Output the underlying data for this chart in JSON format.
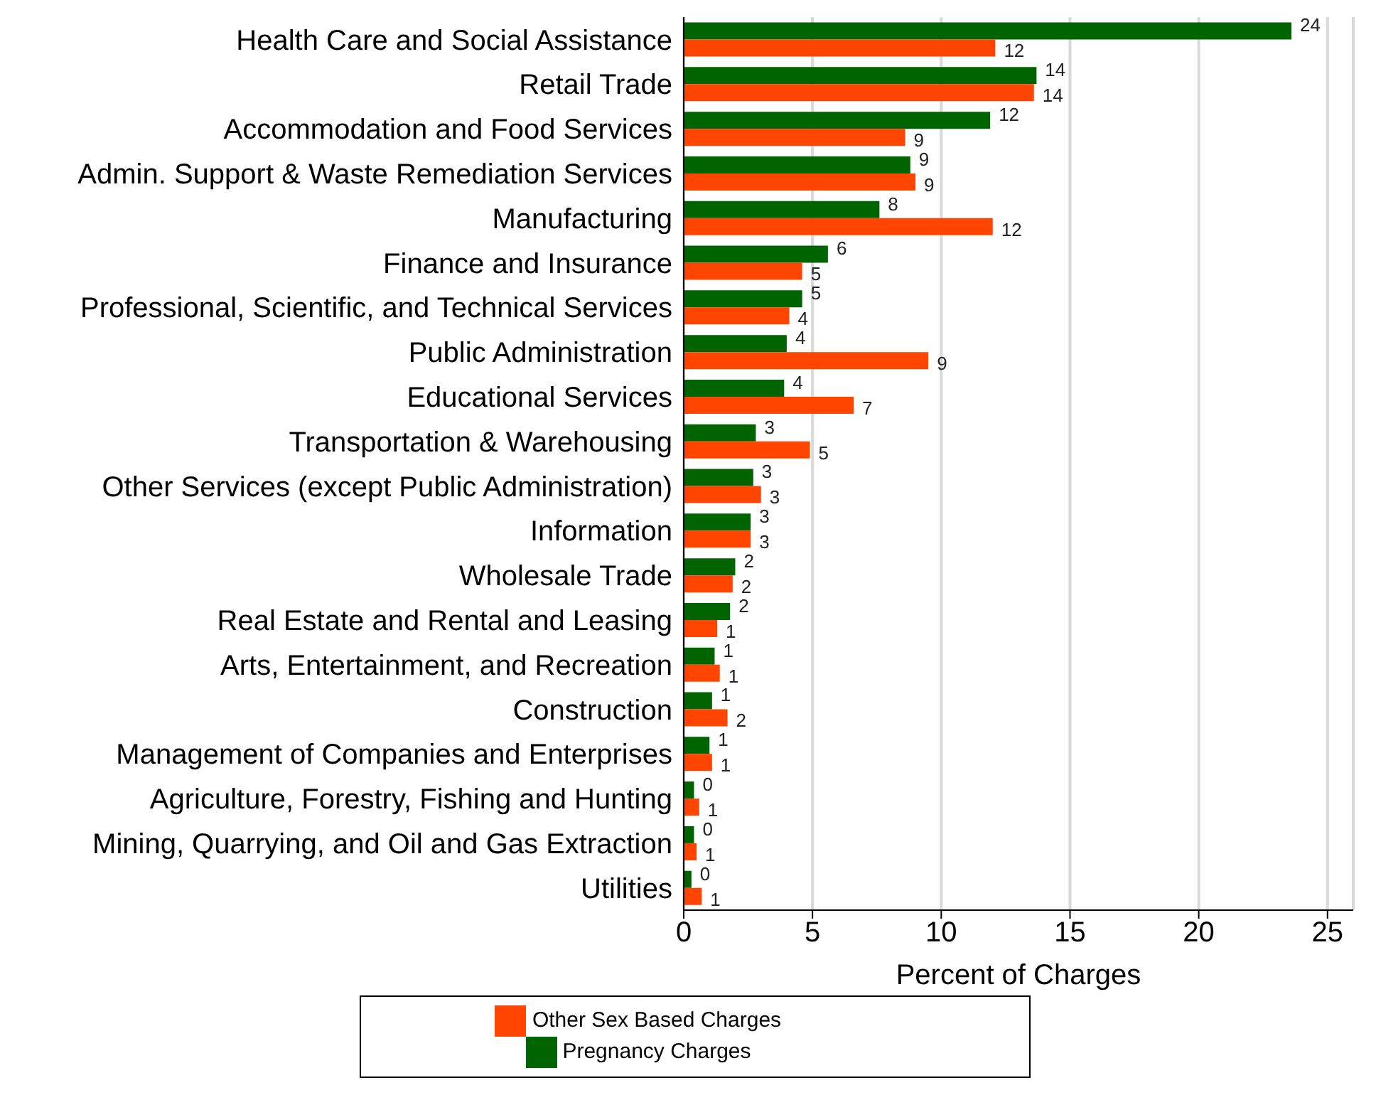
{
  "chart_data": {
    "type": "bar",
    "orientation": "horizontal",
    "xlabel": "Percent of Charges",
    "categories": [
      "Health Care and Social Assistance",
      "Retail Trade",
      "Accommodation and Food Services",
      "Admin. Support & Waste Remediation Services",
      "Manufacturing",
      "Finance and Insurance",
      "Professional, Scientific, and Technical Services",
      "Public Administration",
      "Educational Services",
      "Transportation & Warehousing",
      "Other Services (except Public Administration)",
      "Information",
      "Wholesale Trade",
      "Real Estate and Rental and Leasing",
      "Arts, Entertainment, and Recreation",
      "Construction",
      "Management of Companies and Enterprises",
      "Agriculture, Forestry, Fishing and Hunting",
      "Mining, Quarrying, and Oil and Gas Extraction",
      "Utilities"
    ],
    "series": [
      {
        "name": "Pregnancy Charges",
        "color": "#006400",
        "values": [
          23.6,
          13.7,
          11.9,
          8.8,
          7.6,
          5.6,
          4.6,
          4.0,
          3.9,
          2.8,
          2.7,
          2.6,
          2.0,
          1.8,
          1.2,
          1.1,
          1.0,
          0.4,
          0.4,
          0.3
        ],
        "value_labels": [
          "24",
          "14",
          "12",
          "9",
          "8",
          "6",
          "5",
          "4",
          "4",
          "3",
          "3",
          "3",
          "2",
          "2",
          "1",
          "1",
          "1",
          "0",
          "0",
          "0"
        ]
      },
      {
        "name": "Other Sex Based Charges",
        "color": "#ff4500",
        "values": [
          12.1,
          13.6,
          8.6,
          9.0,
          12.0,
          4.6,
          4.1,
          9.5,
          6.6,
          4.9,
          3.0,
          2.6,
          1.9,
          1.3,
          1.4,
          1.7,
          1.1,
          0.6,
          0.5,
          0.7
        ],
        "value_labels": [
          "12",
          "14",
          "9",
          "9",
          "12",
          "5",
          "4",
          "9",
          "7",
          "5",
          "3",
          "3",
          "2",
          "1",
          "1",
          "2",
          "1",
          "1",
          "1",
          "1"
        ]
      }
    ],
    "xlim": [
      0,
      26
    ],
    "xticks": [
      0,
      5,
      10,
      15,
      20,
      25
    ],
    "grid": "x",
    "legend": "bottom"
  }
}
